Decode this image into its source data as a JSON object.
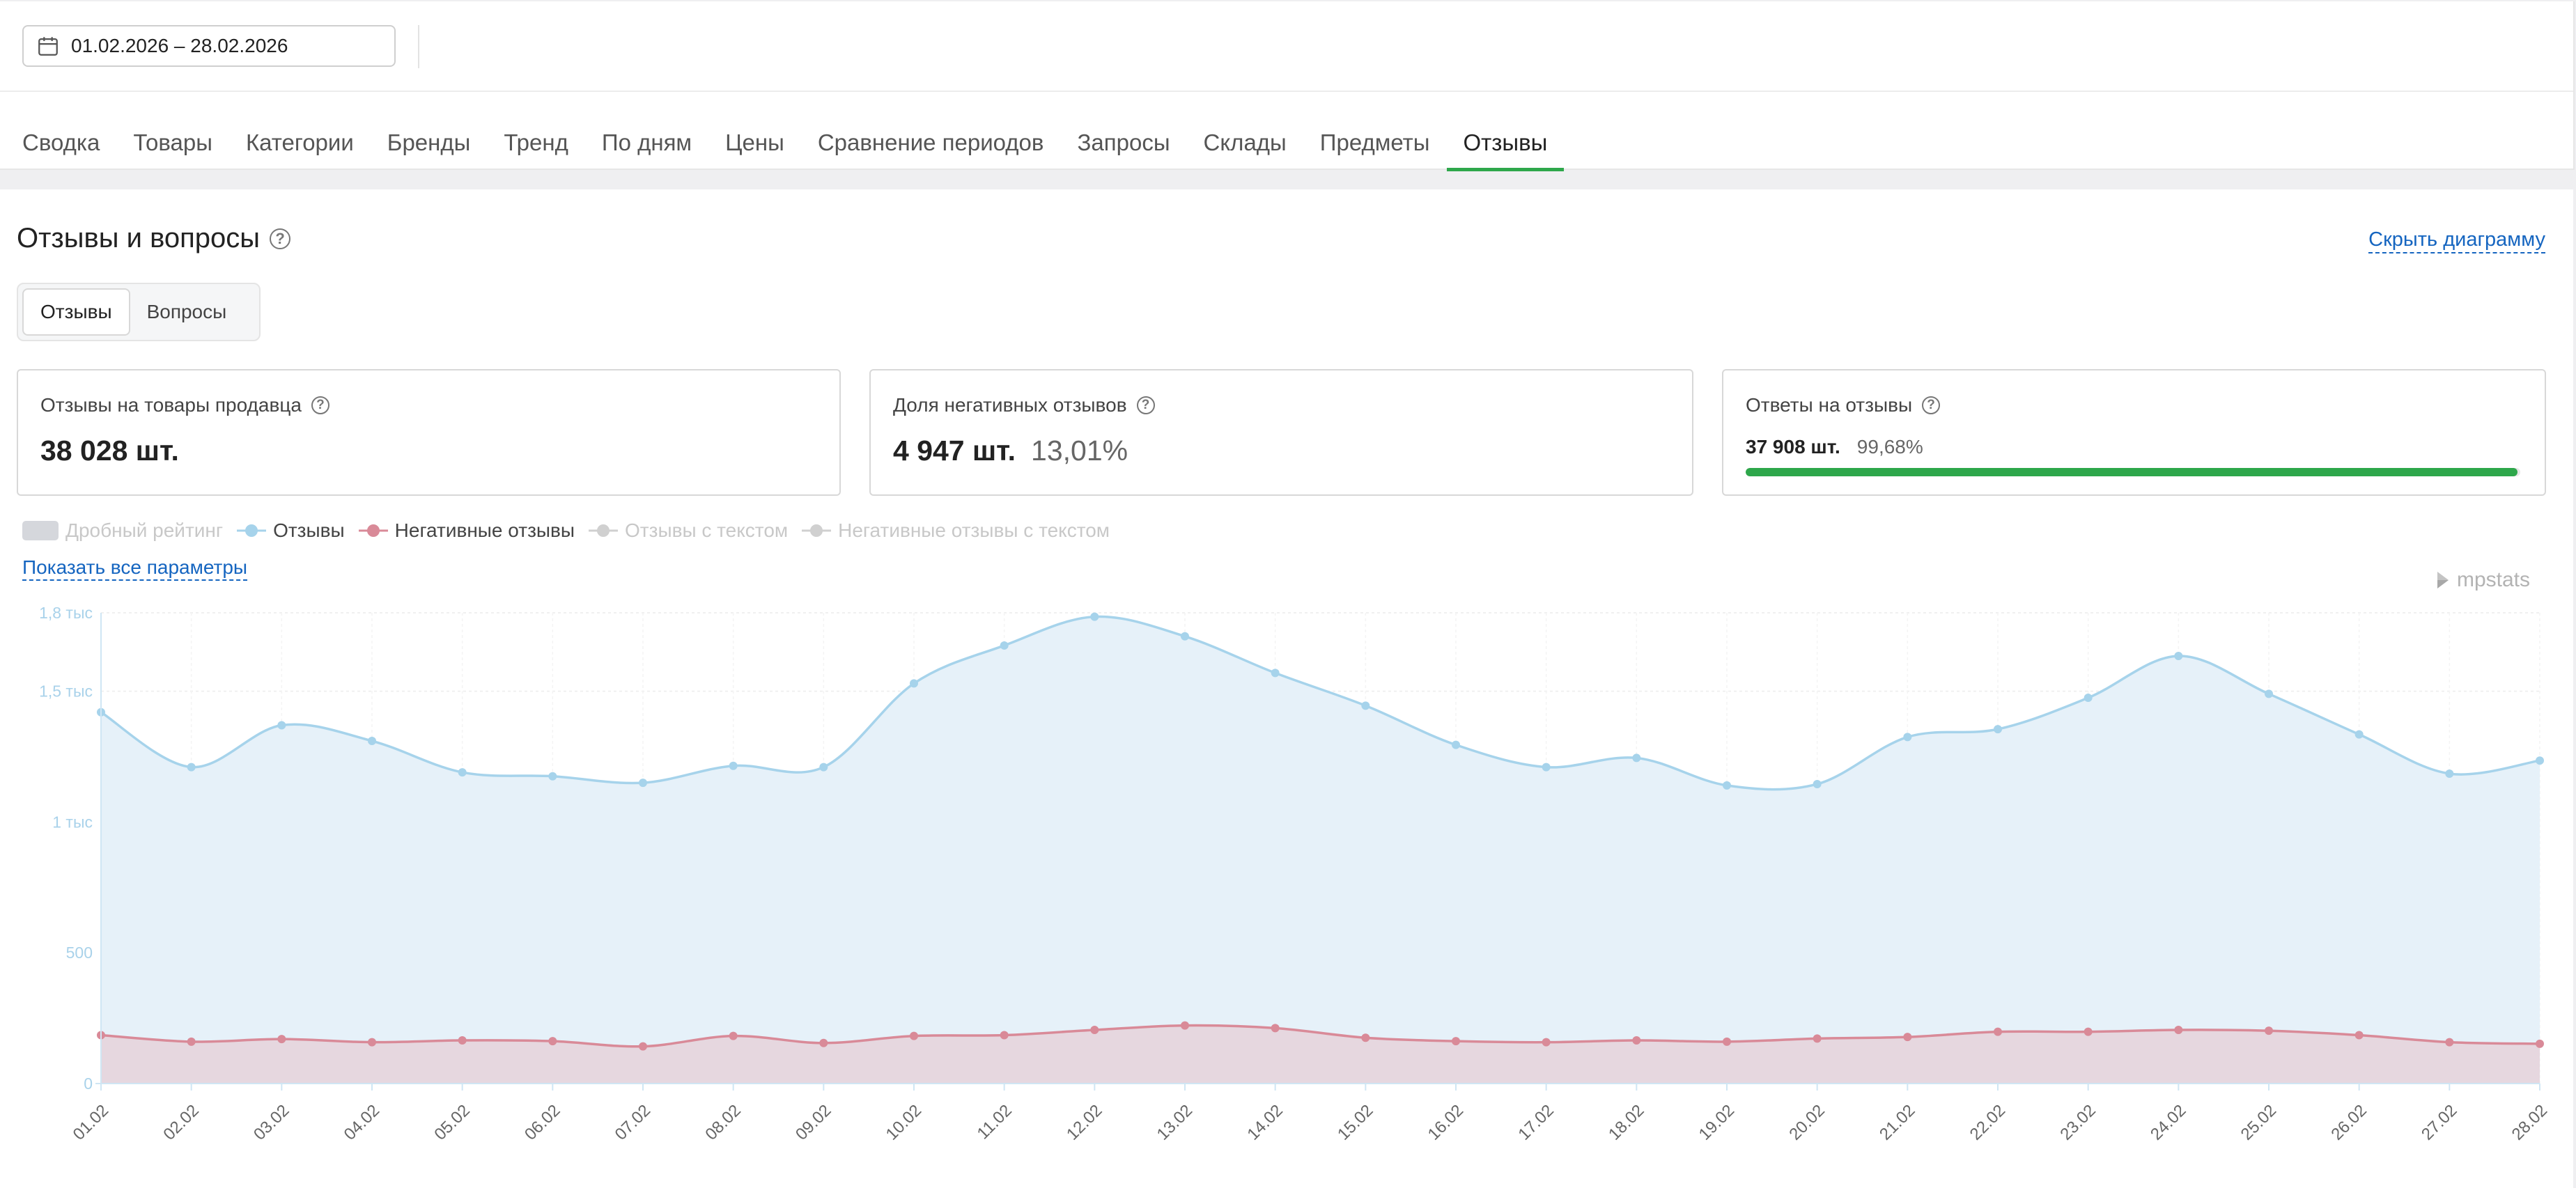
{
  "toolbar": {
    "date_range": "01.02.2026 – 28.02.2026",
    "calendar_icon": "calendar-icon"
  },
  "tabs": [
    {
      "label": "Сводка",
      "active": false
    },
    {
      "label": "Товары",
      "active": false
    },
    {
      "label": "Категории",
      "active": false
    },
    {
      "label": "Бренды",
      "active": false
    },
    {
      "label": "Тренд",
      "active": false
    },
    {
      "label": "По дням",
      "active": false
    },
    {
      "label": "Цены",
      "active": false
    },
    {
      "label": "Сравнение периодов",
      "active": false
    },
    {
      "label": "Запросы",
      "active": false
    },
    {
      "label": "Склады",
      "active": false
    },
    {
      "label": "Предметы",
      "active": false
    },
    {
      "label": "Отзывы",
      "active": true
    }
  ],
  "section": {
    "title": "Отзывы и вопросы",
    "hide_chart_label": "Скрыть диаграмму"
  },
  "segment": {
    "reviews_label": "Отзывы",
    "questions_label": "Вопросы",
    "active": "reviews"
  },
  "cards": {
    "reviews": {
      "label": "Отзывы на товары продавца",
      "value": "38 028 шт."
    },
    "negative": {
      "label": "Доля негативных отзывов",
      "value": "4 947 шт.",
      "percent": "13,01%"
    },
    "answers": {
      "label": "Ответы на отзывы",
      "value": "37 908 шт.",
      "percent": "99,68%",
      "progress": 0.9968
    }
  },
  "legend": {
    "fractional_rating": "Дробный рейтинг",
    "reviews": "Отзывы",
    "negative_reviews": "Негативные отзывы",
    "reviews_with_text": "Отзывы с текстом",
    "negative_with_text": "Негативные отзывы с текстом"
  },
  "show_all_params": "Показать все параметры",
  "watermark": "mpstats",
  "colors": {
    "accent": "#2ea74b",
    "link": "#1565c0",
    "reviews_line": "#a6d3eb",
    "reviews_fill": "#e6f1f9",
    "negative_line": "#d98a98",
    "negative_fill": "#e6d7df",
    "inactive": "#c8c8c8"
  },
  "chart_data": {
    "type": "area",
    "x": [
      "01.02",
      "02.02",
      "03.02",
      "04.02",
      "05.02",
      "06.02",
      "07.02",
      "08.02",
      "09.02",
      "10.02",
      "11.02",
      "12.02",
      "13.02",
      "14.02",
      "15.02",
      "16.02",
      "17.02",
      "18.02",
      "19.02",
      "20.02",
      "21.02",
      "22.02",
      "23.02",
      "24.02",
      "25.02",
      "26.02",
      "27.02",
      "28.02"
    ],
    "series": [
      {
        "name": "Отзывы",
        "values": [
          1420,
          1210,
          1370,
          1310,
          1190,
          1175,
          1150,
          1215,
          1210,
          1530,
          1675,
          1785,
          1710,
          1570,
          1445,
          1295,
          1210,
          1245,
          1140,
          1145,
          1325,
          1355,
          1475,
          1635,
          1490,
          1335,
          1185,
          1235
        ]
      },
      {
        "name": "Негативные отзывы",
        "values": [
          185,
          160,
          170,
          158,
          165,
          162,
          142,
          182,
          155,
          182,
          185,
          205,
          222,
          212,
          175,
          162,
          158,
          165,
          160,
          172,
          178,
          198,
          198,
          205,
          202,
          185,
          158,
          152
        ]
      }
    ],
    "y_ticks": [
      {
        "value": 0,
        "label": "0"
      },
      {
        "value": 500,
        "label": "500"
      },
      {
        "value": 1000,
        "label": "1 тыс"
      },
      {
        "value": 1500,
        "label": "1,5 тыс"
      },
      {
        "value": 1800,
        "label": "1,8 тыс"
      }
    ],
    "ylim": [
      0,
      1800
    ],
    "grid": true,
    "legend_position": "top-left"
  }
}
